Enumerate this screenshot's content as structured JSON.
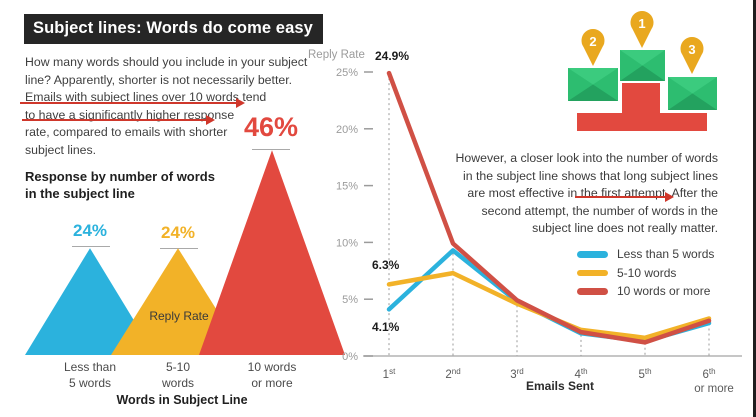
{
  "title": "Subject lines: Words do come easy",
  "left_text": {
    "lines": [
      "How many words should you include in your subject",
      "line? Apparently, shorter is not necessarily better.",
      "Emails with subject lines over 10 words tend",
      "to have a significantly higher response",
      "rate, compared to emails with shorter",
      "subject lines."
    ]
  },
  "right_text": {
    "lines": [
      "However, a closer look into the number of words",
      "in the subject line shows that long subject lines",
      "are most effective in the first attempt. After the",
      "second attempt, the number of words in the",
      "subject line does not really matter."
    ]
  },
  "podium": {
    "pins": [
      "2",
      "1",
      "3"
    ]
  },
  "colors": {
    "cyan": "#2bb2dd",
    "yellow": "#f2b228",
    "red": "#e2493f",
    "line_red": "#d05045",
    "gold": "#e9a81f",
    "green": "#2dbd70",
    "axis_gray": "#9b9b9b",
    "title_bg": "#262626"
  },
  "chart_data": [
    {
      "type": "area",
      "subtype": "pyramid",
      "title": "Response by number of words in the subject line",
      "title_line1": "Response by number of words",
      "title_line2": "in the subject line",
      "categories": [
        "Less than\n5 words",
        "5-10\nwords",
        "10 words\nor more"
      ],
      "values": [
        24,
        24,
        46
      ],
      "value_labels": [
        "24%",
        "24%",
        "46%"
      ],
      "unit": "%",
      "inner_label": "Reply Rate",
      "xlabel": "Words in Subject Line",
      "colors": [
        "#2bb2dd",
        "#f2b228",
        "#e2493f"
      ],
      "legend_position": "none"
    },
    {
      "type": "line",
      "ylabel": "Reply Rate",
      "xlabel": "Emails Sent",
      "x": [
        "1st",
        "2nd",
        "3rd",
        "4th",
        "5th",
        "6th"
      ],
      "x_last_extra": "or more",
      "ylim": [
        0,
        25
      ],
      "yticks": [
        0,
        5,
        10,
        15,
        20,
        25
      ],
      "ytick_labels": [
        "0%",
        "5%",
        "10%",
        "15%",
        "20%",
        "25%"
      ],
      "grid": "dashed-vertical-per-x",
      "legend_position": "right-middle",
      "series": [
        {
          "name": "Less than 5 words",
          "color": "#2bb2dd",
          "values": [
            4.1,
            9.3,
            4.8,
            2.0,
            1.3,
            2.9
          ]
        },
        {
          "name": "5-10 words",
          "color": "#f2b228",
          "values": [
            6.3,
            7.3,
            4.6,
            2.3,
            1.6,
            3.3
          ]
        },
        {
          "name": "10 words or more",
          "color": "#d05045",
          "values": [
            24.9,
            9.9,
            4.9,
            2.1,
            1.2,
            3.1
          ]
        }
      ],
      "point_labels": {
        "red_first": "24.9%",
        "yellow_first": "6.3%",
        "cyan_first": "4.1%"
      }
    }
  ]
}
